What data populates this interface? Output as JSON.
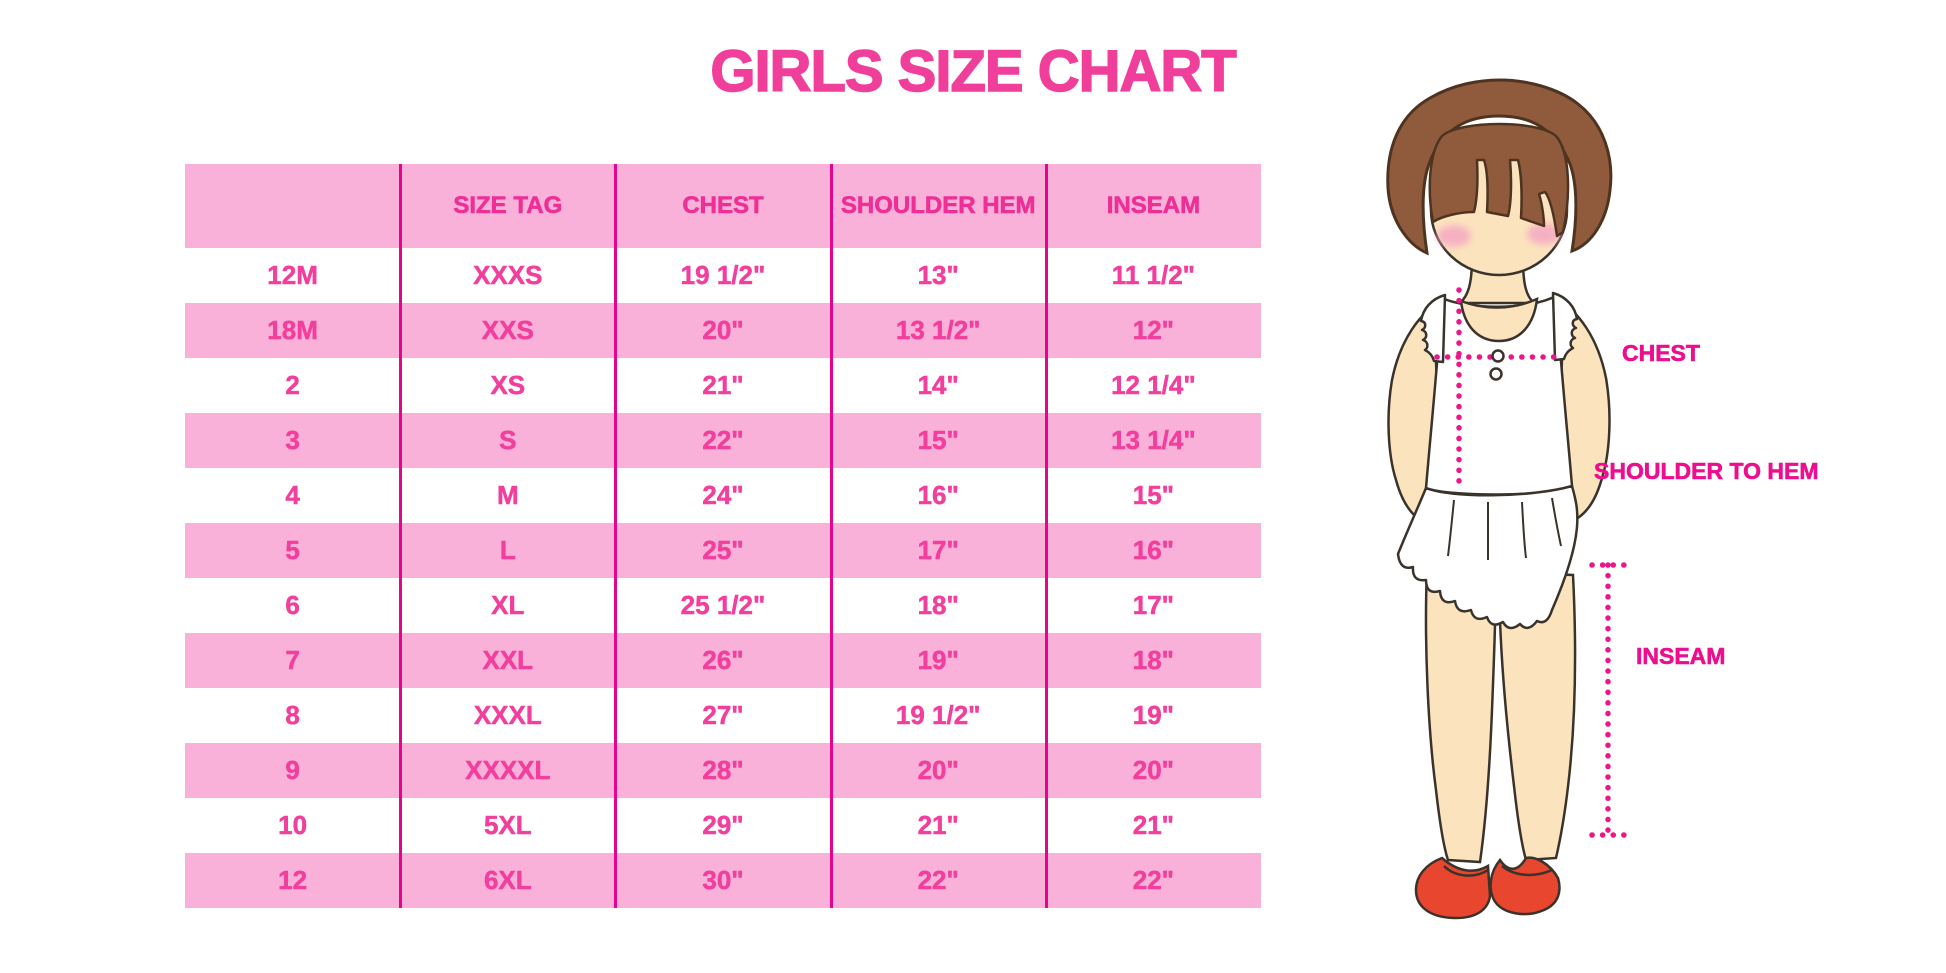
{
  "chart_data": {
    "type": "table",
    "title": "GIRLS SIZE CHART",
    "columns": [
      "",
      "SIZE TAG",
      "CHEST",
      "SHOULDER HEM",
      "INSEAM"
    ],
    "rows": [
      [
        "12M",
        "XXXS",
        "19 1/2\"",
        "13\"",
        "11 1/2\""
      ],
      [
        "18M",
        "XXS",
        "20\"",
        "13 1/2\"",
        "12\""
      ],
      [
        "2",
        "XS",
        "21\"",
        "14\"",
        "12 1/4\""
      ],
      [
        "3",
        "S",
        "22\"",
        "15\"",
        "13 1/4\""
      ],
      [
        "4",
        "M",
        "24\"",
        "16\"",
        "15\""
      ],
      [
        "5",
        "L",
        "25\"",
        "17\"",
        "16\""
      ],
      [
        "6",
        "XL",
        "25 1/2\"",
        "18\"",
        "17\""
      ],
      [
        "7",
        "XXL",
        "26\"",
        "19\"",
        "18\""
      ],
      [
        "8",
        "XXXL",
        "27\"",
        "19 1/2\"",
        "19\""
      ],
      [
        "9",
        "XXXXL",
        "28\"",
        "20\"",
        "20\""
      ],
      [
        "10",
        "5XL",
        "29\"",
        "21\"",
        "21\""
      ],
      [
        "12",
        "6XL",
        "30\"",
        "22\"",
        "22\""
      ]
    ],
    "measurement_labels": [
      "CHEST",
      "SHOULDER TO HEM",
      "INSEAM"
    ],
    "row_stripes": "alternating white / pink starting with white",
    "legend_position": "none"
  },
  "colors": {
    "title_pink": "#f03f9b",
    "row_pink": "#f9b0d9",
    "divider_magenta": "#e5058c",
    "header_text_pink": "#ee2f96",
    "cell_text_pink": "#f23e9d",
    "label_magenta": "#ec0e8f",
    "dotted_line_magenta": "#ec168c",
    "hair_brown": "#8f5b3c",
    "skin_tone": "#fbe4bd",
    "shoe_red": "#e8462e",
    "background": "#ffffff"
  }
}
